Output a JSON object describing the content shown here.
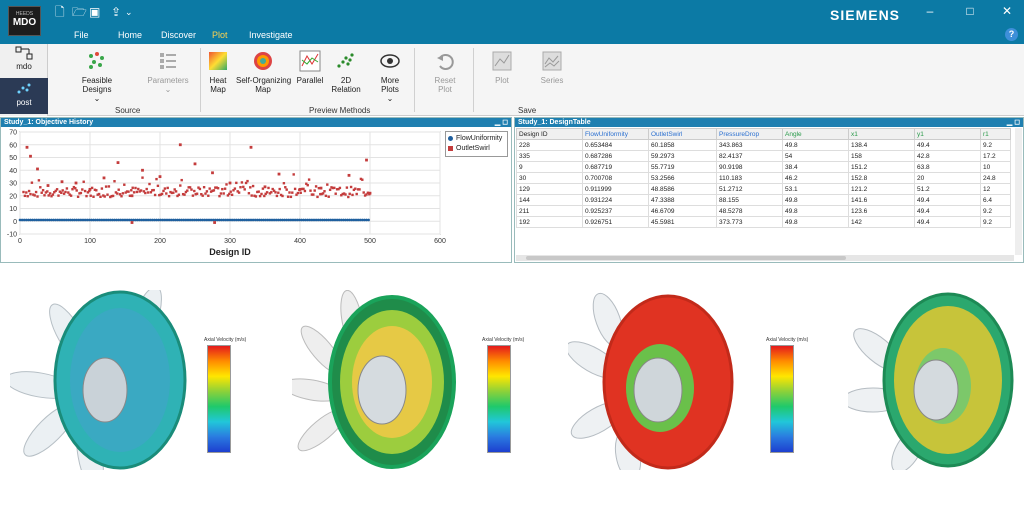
{
  "app": {
    "logo_top": "HEEDS",
    "logo_main": "MDO",
    "brand": "SIEMENS",
    "menu": [
      "File",
      "Home",
      "Discover",
      "Plot",
      "Investigate"
    ],
    "active_menu": "Plot",
    "help": "?"
  },
  "leftnav": {
    "items": [
      {
        "label": "mdo"
      },
      {
        "label": "post"
      }
    ]
  },
  "ribbon": {
    "source": {
      "label": "Source",
      "feasible": "Feasible\nDesigns",
      "parameters": "Parameters"
    },
    "preview": {
      "label": "Preview Methods",
      "heatmap": "Heat\nMap",
      "som": "Self-Organizing\nMap",
      "parallel": "Parallel",
      "relation": "2D\nRelation",
      "more": "More\nPlots"
    },
    "reset": "Reset\nPlot",
    "save": {
      "label": "Save",
      "plot": "Plot",
      "series": "Series"
    }
  },
  "history": {
    "title": "Study_1: Objective History",
    "xlabel": "Design ID",
    "legend": [
      "FlowUniformity",
      "OutletSwirl"
    ]
  },
  "design_table": {
    "title": "Study_1: DesignTable",
    "columns": [
      "Design ID",
      "FlowUniformity",
      "OutletSwirl",
      "PressureDrop",
      "Angle",
      "x1",
      "y1",
      "r1"
    ],
    "rows": [
      [
        "228",
        "0.653484",
        "60.1858",
        "343.863",
        "49.8",
        "138.4",
        "49.4",
        "9.2"
      ],
      [
        "335",
        "0.687286",
        "59.2973",
        "82.4137",
        "54",
        "158",
        "42.8",
        "17.2"
      ],
      [
        "9",
        "0.687719",
        "55.7719",
        "90.9198",
        "38.4",
        "151.2",
        "63.8",
        "10"
      ],
      [
        "30",
        "0.700708",
        "53.2566",
        "110.183",
        "46.2",
        "152.8",
        "20",
        "24.8"
      ],
      [
        "129",
        "0.911999",
        "48.8586",
        "51.2712",
        "53.1",
        "121.2",
        "51.2",
        "12"
      ],
      [
        "144",
        "0.931224",
        "47.3388",
        "88.155",
        "49.8",
        "141.6",
        "49.4",
        "6.4"
      ],
      [
        "211",
        "0.925237",
        "46.6709",
        "48.5278",
        "49.8",
        "123.6",
        "49.4",
        "9.2"
      ],
      [
        "192",
        "0.926751",
        "45.5981",
        "373.773",
        "49.8",
        "142",
        "49.4",
        "9.2"
      ]
    ]
  },
  "colorbar": {
    "title": "Axial Velocity (m/s)"
  },
  "chart_data": {
    "type": "scatter",
    "title": "",
    "xlabel": "Design ID",
    "ylabel": "",
    "xlim": [
      0,
      600
    ],
    "ylim": [
      -10,
      70
    ],
    "xticks": [
      0,
      100,
      200,
      300,
      400,
      500,
      600
    ],
    "yticks": [
      -10,
      0,
      10,
      20,
      30,
      40,
      50,
      60,
      70
    ],
    "legend_position": "right",
    "series": [
      {
        "name": "FlowUniformity",
        "color": "#1f5f9e",
        "summary": "near 1 for designs 0-500",
        "values": [
          [
            0,
            1
          ],
          [
            50,
            1
          ],
          [
            100,
            1
          ],
          [
            150,
            1
          ],
          [
            200,
            1
          ],
          [
            250,
            1
          ],
          [
            300,
            1
          ],
          [
            350,
            1
          ],
          [
            400,
            1
          ],
          [
            450,
            1
          ],
          [
            500,
            1
          ]
        ]
      },
      {
        "name": "OutletSwirl",
        "color": "#c43c3c",
        "values": [
          [
            10,
            58
          ],
          [
            15,
            51
          ],
          [
            25,
            41
          ],
          [
            40,
            28
          ],
          [
            60,
            31
          ],
          [
            80,
            30
          ],
          [
            100,
            25
          ],
          [
            120,
            34
          ],
          [
            140,
            46
          ],
          [
            160,
            20
          ],
          [
            175,
            40
          ],
          [
            200,
            35
          ],
          [
            229,
            60
          ],
          [
            250,
            45
          ],
          [
            275,
            38
          ],
          [
            300,
            30
          ],
          [
            330,
            58
          ],
          [
            350,
            27
          ],
          [
            370,
            37
          ],
          [
            400,
            25
          ],
          [
            430,
            26
          ],
          [
            470,
            36
          ],
          [
            495,
            48
          ],
          [
            500,
            22
          ]
        ]
      }
    ]
  }
}
